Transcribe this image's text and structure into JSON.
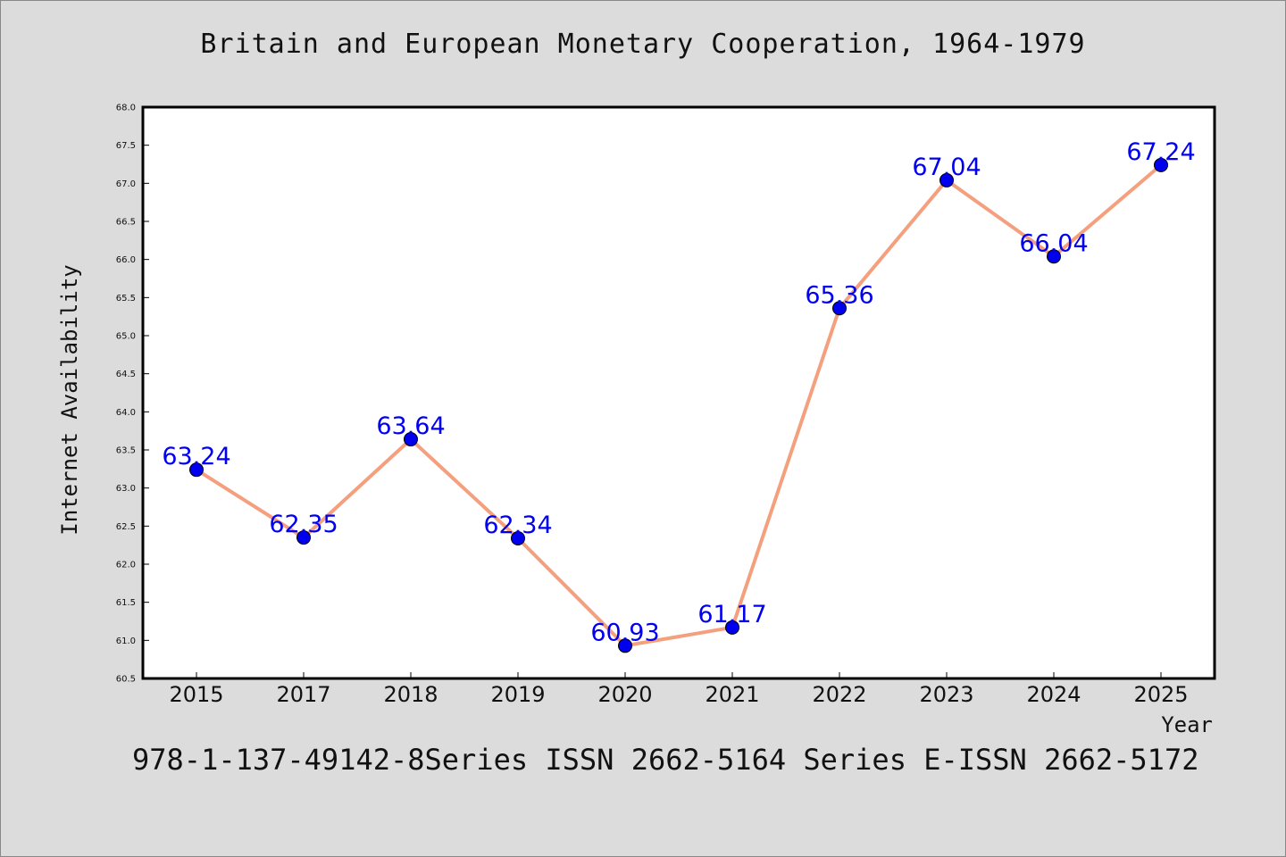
{
  "title": "Britain and European Monetary Cooperation, 1964-1979",
  "footer": "978-1-137-49142-8Series ISSN 2662-5164 Series E-ISSN 2662-5172",
  "colors": {
    "background": "#dcdcdc",
    "plot_background": "#ffffff",
    "line": "#f4a07e",
    "marker": "#0000ee",
    "data_label": "#0000ee"
  },
  "chart_data": {
    "type": "line",
    "categories": [
      "2015",
      "2017",
      "2018",
      "2019",
      "2020",
      "2021",
      "2022",
      "2023",
      "2024",
      "2025"
    ],
    "series": [
      {
        "values": [
          63.24,
          62.35,
          63.64,
          62.34,
          60.93,
          61.17,
          65.36,
          67.04,
          66.04,
          67.24
        ]
      }
    ],
    "data_labels": [
      "63.24",
      "62.35",
      "63.64",
      "62.34",
      "60.93",
      "61.17",
      "65.36",
      "67.04",
      "66.04",
      "67.24"
    ],
    "xlabel": "Year",
    "ylabel": "Internet Availability",
    "ylim": [
      60.5,
      68.0
    ],
    "yticks": [
      "60.5",
      "61.0",
      "61.5",
      "62.0",
      "62.5",
      "63.0",
      "63.5",
      "64.0",
      "64.5",
      "65.0",
      "65.5",
      "66.0",
      "66.5",
      "67.0",
      "67.5",
      "68.0"
    ],
    "grid": false,
    "legend": "none"
  }
}
